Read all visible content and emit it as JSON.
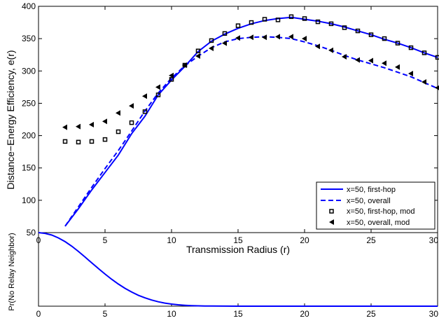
{
  "chart_data": [
    {
      "type": "line",
      "xlabel": "Transmission Radius (r)",
      "ylabel": "Distance−Energy Efficiency, e(r)",
      "xlim": [
        0,
        30
      ],
      "ylim": [
        50,
        400
      ],
      "xticks": [
        0,
        5,
        10,
        15,
        20,
        25,
        30
      ],
      "yticks": [
        50,
        100,
        150,
        200,
        250,
        300,
        350,
        400
      ],
      "xtick_labels": [
        "0",
        "5",
        "10",
        "15",
        "20",
        "25",
        "30"
      ],
      "ytick_labels": [
        "50",
        "100",
        "150",
        "200",
        "250",
        "300",
        "350",
        "400"
      ],
      "grid": false,
      "legend_position": "bottom-right",
      "series": [
        {
          "name": "x=50, first-hop",
          "style": "solid-line",
          "color": "#0000ff",
          "x": [
            2,
            3,
            4,
            5,
            6,
            7,
            8,
            9,
            10,
            11,
            12,
            13,
            14,
            15,
            16,
            17,
            18,
            19,
            20,
            21,
            22,
            23,
            24,
            25,
            26,
            27,
            28,
            29,
            30
          ],
          "y": [
            60,
            87,
            116,
            143,
            170,
            203,
            230,
            263,
            286,
            307,
            330,
            346,
            357,
            366,
            373,
            378,
            381,
            383,
            380,
            377,
            373,
            368,
            362,
            356,
            349,
            343,
            336,
            328,
            321
          ]
        },
        {
          "name": "x=50, overall",
          "style": "dashed-line",
          "color": "#0000ff",
          "x": [
            2,
            3,
            4,
            5,
            6,
            7,
            8,
            9,
            10,
            11,
            12,
            13,
            14,
            15,
            16,
            17,
            18,
            19,
            20,
            21,
            22,
            23,
            24,
            25,
            26,
            27,
            28,
            29,
            30
          ],
          "y": [
            60,
            90,
            120,
            149,
            177,
            207,
            238,
            266,
            289,
            308,
            323,
            336,
            345,
            350,
            352,
            353,
            352,
            350,
            345,
            339,
            332,
            324,
            317,
            311,
            305,
            298,
            291,
            282,
            273
          ]
        },
        {
          "name": "x=50, first-hop, mod",
          "style": "square-markers",
          "color": "#000000",
          "x": [
            2,
            3,
            4,
            5,
            6,
            7,
            8,
            9,
            10,
            11,
            12,
            13,
            14,
            15,
            16,
            17,
            18,
            19,
            20,
            21,
            22,
            23,
            24,
            25,
            26,
            27,
            28,
            29,
            30
          ],
          "y": [
            191,
            190,
            191,
            194,
            206,
            220,
            237,
            263,
            287,
            309,
            331,
            347,
            358,
            370,
            375,
            380,
            379,
            384,
            381,
            376,
            373,
            367,
            362,
            356,
            350,
            343,
            336,
            328,
            321
          ]
        },
        {
          "name": "x=50, overall, mod",
          "style": "left-triangle-markers",
          "color": "#000000",
          "x": [
            2,
            3,
            4,
            5,
            6,
            7,
            8,
            9,
            10,
            11,
            12,
            13,
            14,
            15,
            16,
            17,
            18,
            19,
            20,
            21,
            22,
            23,
            24,
            25,
            26,
            27,
            28,
            29,
            30
          ],
          "y": [
            213,
            214,
            217,
            222,
            235,
            246,
            261,
            275,
            293,
            309,
            323,
            335,
            343,
            351,
            352,
            352,
            353,
            353,
            350,
            338,
            332,
            322,
            317,
            316,
            312,
            306,
            296,
            283,
            274
          ]
        }
      ]
    },
    {
      "type": "line",
      "xlabel": "",
      "ylabel": "Pr(No Relay Neighbor)",
      "xlim": [
        0,
        30
      ],
      "ylim": [
        0,
        1
      ],
      "xticks": [
        0,
        5,
        10,
        15,
        20,
        25,
        30
      ],
      "xtick_labels": [
        "0",
        "5",
        "10",
        "15",
        "20",
        "25",
        "30"
      ],
      "grid": false,
      "series": [
        {
          "style": "solid-line",
          "color": "#0000ff",
          "x": [
            0,
            0.5,
            1,
            1.5,
            2,
            2.5,
            3,
            3.5,
            4,
            4.5,
            5,
            5.5,
            6,
            6.5,
            7,
            7.5,
            8,
            8.5,
            9,
            9.5,
            10,
            10.5,
            11,
            11.5,
            12,
            12.5,
            13,
            14,
            15,
            16,
            18,
            20,
            22,
            24,
            26,
            28,
            30
          ],
          "y": [
            1,
            0.99,
            0.967,
            0.928,
            0.877,
            0.815,
            0.744,
            0.668,
            0.59,
            0.512,
            0.437,
            0.366,
            0.301,
            0.243,
            0.192,
            0.149,
            0.113,
            0.084,
            0.06,
            0.042,
            0.029,
            0.019,
            0.012,
            0.008,
            0.005,
            0.003,
            0.002,
            0.0007,
            0.0002,
            5e-05,
            0,
            0,
            0,
            0,
            0,
            0,
            0
          ]
        }
      ]
    }
  ]
}
